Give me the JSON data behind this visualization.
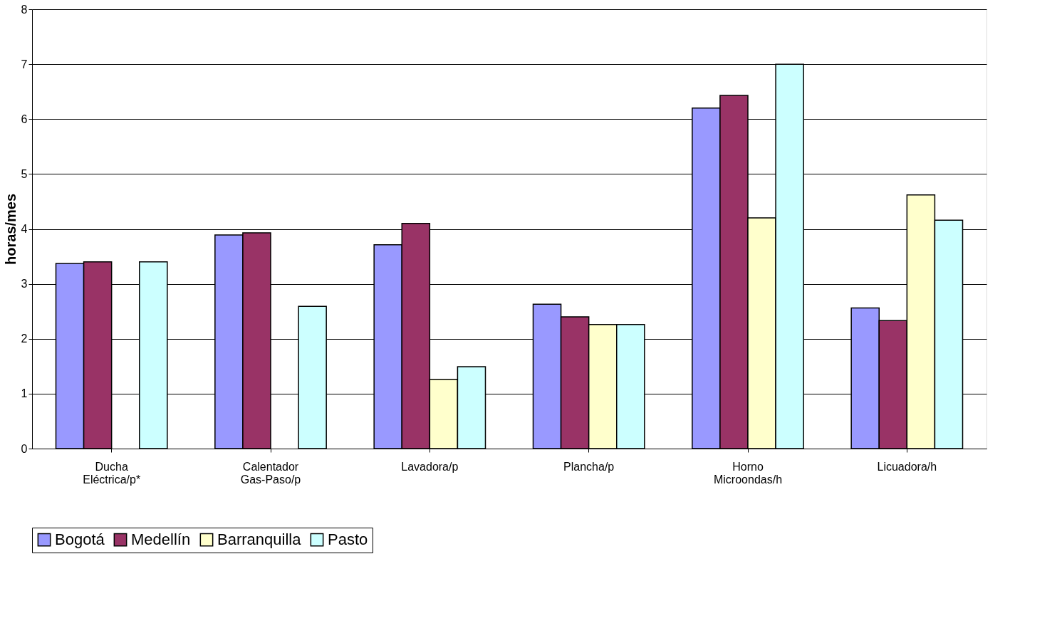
{
  "chart_data": {
    "type": "bar",
    "ylabel": "horas/mes",
    "categories": [
      "Ducha Eléctrica/p*",
      "Calentador Gas-Paso/p",
      "Lavadora/p",
      "Plancha/p",
      "Horno Microondas/h",
      "Licuadora/h"
    ],
    "series": [
      {
        "name": "Bogotá",
        "color": "#9999ff",
        "values": [
          3.37,
          3.89,
          3.71,
          2.63,
          6.2,
          2.56
        ]
      },
      {
        "name": "Medellín",
        "color": "#993366",
        "values": [
          3.4,
          3.93,
          4.1,
          2.4,
          6.43,
          2.33
        ]
      },
      {
        "name": "Barranquilla",
        "color": "#ffffcc",
        "values": [
          null,
          null,
          1.26,
          2.26,
          4.2,
          4.62
        ]
      },
      {
        "name": "Pasto",
        "color": "#ccffff",
        "values": [
          3.4,
          2.59,
          1.49,
          2.26,
          7.0,
          4.16
        ]
      }
    ],
    "ylim": [
      0,
      8
    ],
    "yticks": [
      0,
      1,
      2,
      3,
      4,
      5,
      6,
      7,
      8
    ],
    "grid": "y",
    "legend": "bottom"
  }
}
